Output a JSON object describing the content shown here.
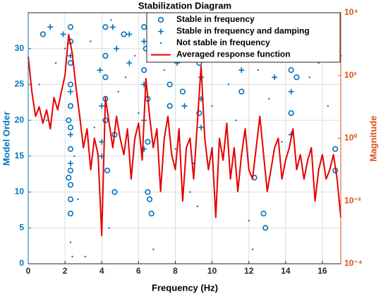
{
  "chart_data": {
    "type": "scatter",
    "title": "Stabilization Diagram",
    "x_label": "Frequency (Hz)",
    "y_label": "Model Order",
    "y2_label": "Magnitude",
    "xlim": [
      0,
      17
    ],
    "ylim": [
      0,
      35
    ],
    "y2lim": [
      0.0001,
      10000
    ],
    "y2_log_scale": true,
    "xticks": [
      0,
      2,
      4,
      6,
      8,
      10,
      12,
      14,
      16
    ],
    "yticks": [
      0,
      5,
      10,
      15,
      20,
      25,
      30
    ],
    "y2ticks": [
      {
        "value": 0.0001,
        "label": "10⁻⁴"
      },
      {
        "value": 0.01,
        "label": "10⁻²"
      },
      {
        "value": 1,
        "label": "10⁰"
      },
      {
        "value": 100,
        "label": "10²"
      },
      {
        "value": 10000,
        "label": "10⁴"
      }
    ],
    "grid": true,
    "legend": "northeast",
    "y_axis_color": "#0072bd",
    "y2_axis_color": "#d95319",
    "series": [
      {
        "name": "Stable in frequency",
        "type": "scatter",
        "marker": "circle",
        "color": "#0072bd",
        "x": [
          0.8,
          2.3,
          2.3,
          2.3,
          2.3,
          2.3,
          2.3,
          2.3,
          2.3,
          2.3,
          2.3,
          2.3,
          2.2,
          2.2,
          4.2,
          4.2,
          4.2,
          4.2,
          4.2,
          4.3,
          4.7,
          4.7,
          5.2,
          6.3,
          6.4,
          6.3,
          6.5,
          6.5,
          6.5,
          6.6,
          6.7,
          7.7,
          7.7,
          8.4,
          9.3,
          9.3,
          9.3,
          11.6,
          12.3,
          12.8,
          12.9,
          14.3,
          14.3,
          14.3,
          14.6,
          16.7,
          16.7
        ],
        "values": [
          32,
          33,
          31,
          28,
          25,
          22,
          19,
          16,
          13,
          11,
          9,
          7,
          20,
          12,
          33,
          29,
          26,
          23,
          20,
          13,
          18,
          10,
          32,
          33,
          30,
          27,
          23,
          17,
          10,
          9,
          7,
          22,
          25,
          24,
          32,
          28,
          21,
          24,
          12,
          7,
          5,
          30,
          27,
          21,
          26,
          13,
          16
        ]
      },
      {
        "name": "Stable in frequency and damping",
        "type": "scatter",
        "marker": "plus",
        "color": "#0072bd",
        "x": [
          1.2,
          1.9,
          2.3,
          2.3,
          2.3,
          2.3,
          3.9,
          4.0,
          4.0,
          4.0,
          4.6,
          4.8,
          5.5,
          5.5,
          6.3,
          6.3,
          6.3,
          6.3,
          7.1,
          7.3,
          7.6,
          8.1,
          8.1,
          8.5,
          8.5,
          9.4,
          9.4,
          9.4,
          9.4,
          10.4,
          10.6,
          11.2,
          11.6,
          11.8,
          12.7,
          12.7,
          13.4,
          13.6,
          14.1,
          14.3,
          14.3,
          15.0,
          15.5,
          16.1,
          16.4,
          16.9
        ],
        "values": [
          33,
          32,
          29,
          24,
          18,
          14,
          27,
          22,
          17,
          15,
          33,
          30,
          32,
          28,
          31,
          25,
          20,
          16,
          32,
          30,
          33,
          32,
          28,
          31,
          22,
          30,
          26,
          23,
          19,
          33,
          31,
          32,
          27,
          30,
          33,
          29,
          26,
          32,
          31,
          24,
          18,
          33,
          31,
          33,
          30,
          29
        ]
      },
      {
        "name": "Not stable in frequency",
        "type": "scatter",
        "marker": "dot",
        "color": "#0072bd",
        "x": [
          0.6,
          1.0,
          1.5,
          2.0,
          2.5,
          2.7,
          3.1,
          3.4,
          3.6,
          4.5,
          4.9,
          5.3,
          5.8,
          6.0,
          7.0,
          7.4,
          8.0,
          8.8,
          9.0,
          9.6,
          10.0,
          10.3,
          10.9,
          11.3,
          12.2,
          12.5,
          13.1,
          13.8,
          14.8,
          15.3,
          15.8,
          16.3,
          2.3,
          2.4,
          4.4,
          6.8,
          9.2,
          12.0
        ],
        "values": [
          25,
          20,
          28,
          30,
          15,
          9,
          1,
          31,
          19,
          34,
          24,
          26,
          29,
          21,
          18,
          27,
          16,
          10,
          14,
          29,
          22,
          12,
          25,
          20,
          2,
          27,
          23,
          17,
          30,
          26,
          28,
          22,
          3,
          1,
          5,
          2,
          8,
          6
        ]
      },
      {
        "name": "Averaged response function",
        "type": "line",
        "axis": "y2",
        "color": "#e60000",
        "x": [
          0,
          0.2,
          0.4,
          0.6,
          0.8,
          1.0,
          1.2,
          1.4,
          1.6,
          1.8,
          2.0,
          2.2,
          2.4,
          2.6,
          2.8,
          3.0,
          3.2,
          3.4,
          3.6,
          3.8,
          4.0,
          4.2,
          4.4,
          4.6,
          4.8,
          5.0,
          5.2,
          5.4,
          5.6,
          5.8,
          6.0,
          6.2,
          6.4,
          6.6,
          6.8,
          7.0,
          7.2,
          7.4,
          7.6,
          7.8,
          8.0,
          8.2,
          8.4,
          8.6,
          8.8,
          9.0,
          9.2,
          9.4,
          9.6,
          9.8,
          10.0,
          10.2,
          10.4,
          10.6,
          10.8,
          11.0,
          11.2,
          11.4,
          11.6,
          11.8,
          12.0,
          12.2,
          12.4,
          12.6,
          12.8,
          13.0,
          13.2,
          13.4,
          13.6,
          13.8,
          14.0,
          14.2,
          14.4,
          14.6,
          14.8,
          15.0,
          15.2,
          15.4,
          15.6,
          15.8,
          16.0,
          16.2,
          16.4,
          16.6,
          16.8,
          17.0
        ],
        "values": [
          400,
          30,
          5,
          10,
          3,
          8,
          2,
          20,
          8,
          30,
          100,
          2000,
          500,
          40,
          5,
          0.5,
          2,
          0.1,
          1,
          0.3,
          0.0008,
          20,
          3,
          0.5,
          5,
          1,
          0.3,
          2,
          0.05,
          1,
          3,
          0.2,
          80,
          5,
          0.5,
          2,
          0.02,
          1,
          5,
          0.3,
          0.1,
          2,
          0.01,
          0.5,
          1,
          0.05,
          3,
          200,
          1,
          0.1,
          0.5,
          0.003,
          1,
          0.2,
          3,
          0.05,
          0.5,
          0.02,
          0.3,
          2,
          0.1,
          0.05,
          0.5,
          5,
          0.3,
          0.02,
          0.1,
          0.5,
          1,
          0.05,
          0.2,
          0.5,
          2,
          0.1,
          0.3,
          0.05,
          0.2,
          0.5,
          0.01,
          0.1,
          0.3,
          0.05,
          0.1,
          0.3,
          0.05,
          0.003
        ]
      }
    ]
  }
}
